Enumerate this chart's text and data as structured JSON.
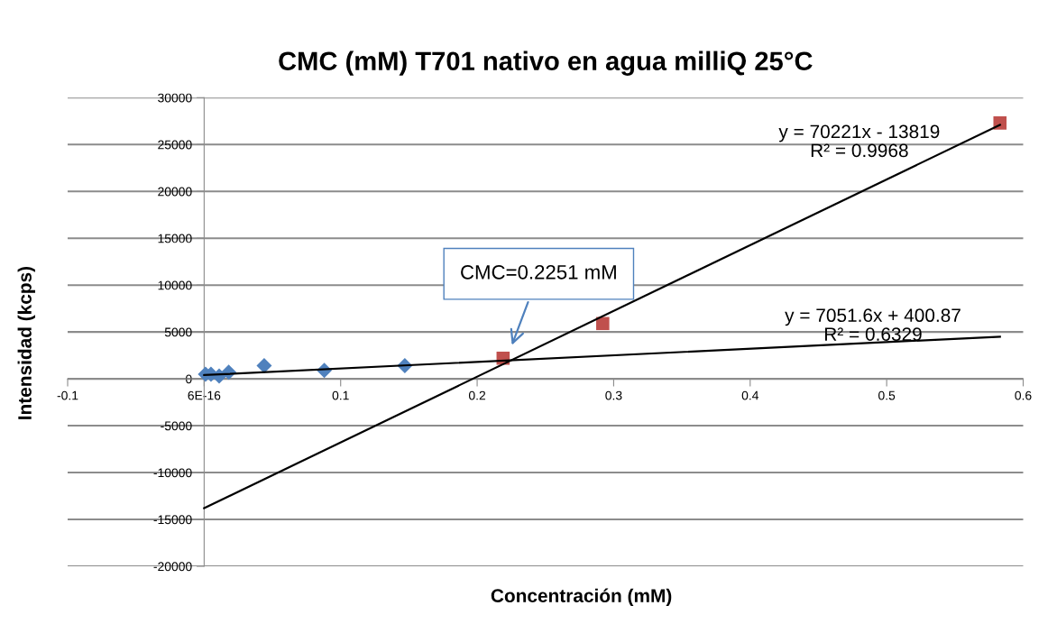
{
  "chart_data": {
    "type": "scatter",
    "title": "CMC (mM) T701 nativo en agua milliQ 25°C",
    "xlabel": "Concentración (mM)",
    "ylabel": "Intensidad (kcps)",
    "xlim": [
      -0.1,
      0.6
    ],
    "xticks": [
      -0.1,
      {
        "value": 0,
        "label": "6E-16"
      },
      0.1,
      0.2,
      0.3,
      0.4,
      0.5,
      0.6
    ],
    "ylim": [
      -20000,
      30000
    ],
    "yticks": [
      -20000,
      -15000,
      -10000,
      -5000,
      0,
      5000,
      10000,
      15000,
      20000,
      25000,
      30000
    ],
    "grid": "y",
    "legend": false,
    "series": [
      {
        "marker": "diamond",
        "color": "#4f81bd",
        "x": [
          0.001,
          0.005,
          0.011,
          0.018,
          0.044,
          0.088,
          0.147
        ],
        "values": [
          500,
          500,
          300,
          700,
          1400,
          900,
          1400
        ]
      },
      {
        "marker": "square",
        "color": "#c0504d",
        "x": [
          0.219,
          0.292,
          0.583
        ],
        "values": [
          2200,
          5900,
          27300
        ]
      },
      {
        "type": "line",
        "marker": "none",
        "color": "#000000",
        "x": [
          0,
          0.583
        ],
        "values": [
          400,
          4500
        ]
      },
      {
        "type": "line",
        "marker": "none",
        "color": "#000000",
        "x": [
          0,
          0.583
        ],
        "values": [
          -13800,
          27100
        ]
      }
    ],
    "annotations": [
      "y = 70221x - 13819\nR² = 0.9968",
      "y = 7051.6x + 400.87\nR² = 0.6329",
      "CMC=0.2251 mM"
    ]
  }
}
